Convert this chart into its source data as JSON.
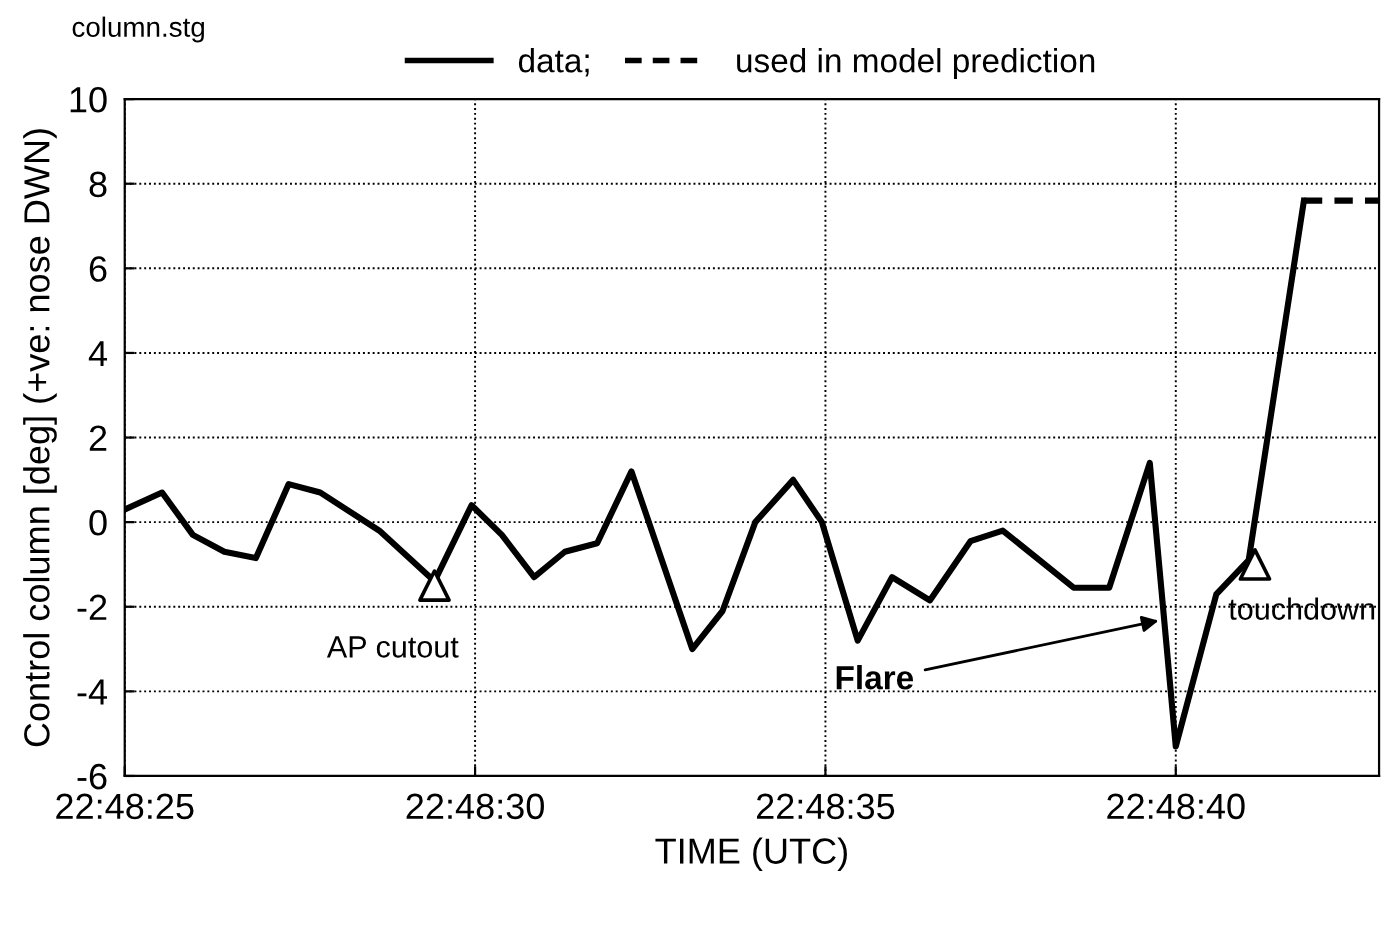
{
  "chart_data": {
    "type": "line",
    "xlabel": "TIME (UTC)",
    "ylabel": "Control column [deg] (+ve: nose DWN)",
    "xlim": [
      22.806944,
      22.811917
    ],
    "ylim": [
      -6,
      10
    ],
    "xticks": [
      {
        "value": 22.806944,
        "label": "22:48:25"
      },
      {
        "value": 22.808333,
        "label": "22:48:30"
      },
      {
        "value": 22.809722,
        "label": "22:48:35"
      },
      {
        "value": 22.811111,
        "label": "22:48:40"
      }
    ],
    "yticks": [
      -6,
      -4,
      -2,
      0,
      2,
      4,
      6,
      8,
      10
    ],
    "grid": true,
    "legend": "top",
    "marker": "none",
    "series": [
      {
        "name": "data;",
        "color": "#000000",
        "line_style": "solid",
        "x": [
          22.806944,
          22.807092,
          22.807214,
          22.807339,
          22.807464,
          22.807594,
          22.807719,
          22.807953,
          22.808172,
          22.808319,
          22.808439,
          22.808567,
          22.808689,
          22.808817,
          22.808953,
          22.809194,
          22.809314,
          22.809444,
          22.809594,
          22.809708,
          22.80985,
          22.809986,
          22.810136,
          22.810297,
          22.810425,
          22.810706,
          22.810847,
          22.811008,
          22.811111,
          22.811272,
          22.8114,
          22.811619
        ],
        "values": [
          0.3,
          0.7,
          -0.3,
          -0.7,
          -0.85,
          0.9,
          0.7,
          -0.2,
          -1.4,
          0.4,
          -0.3,
          -1.3,
          -0.7,
          -0.5,
          1.2,
          -3.0,
          -2.1,
          0.0,
          1.0,
          0.0,
          -2.8,
          -1.3,
          -1.85,
          -0.45,
          -0.2,
          -1.55,
          -1.55,
          1.4,
          -5.3,
          -1.7,
          -0.9,
          7.6
        ]
      },
      {
        "name": "used in model prediction",
        "color": "#000000",
        "line_style": "dashed",
        "x": [
          22.811619,
          22.811917
        ],
        "values": [
          7.6,
          7.6
        ]
      },
      {
        "type": "scatter",
        "marker": "triangle",
        "color": "#000000",
        "x": [
          22.808172,
          22.811425
        ],
        "values": [
          -1.5,
          -1.0
        ]
      }
    ],
    "annotations": [
      "column.stg",
      {
        "text": "AP cutout",
        "x": 22.808172,
        "y": -1.5
      },
      {
        "text": "touchdown",
        "x": 22.811425,
        "y": -1.0
      },
      {
        "text": "Flare",
        "x": 22.811065,
        "y": -2.3
      }
    ]
  }
}
